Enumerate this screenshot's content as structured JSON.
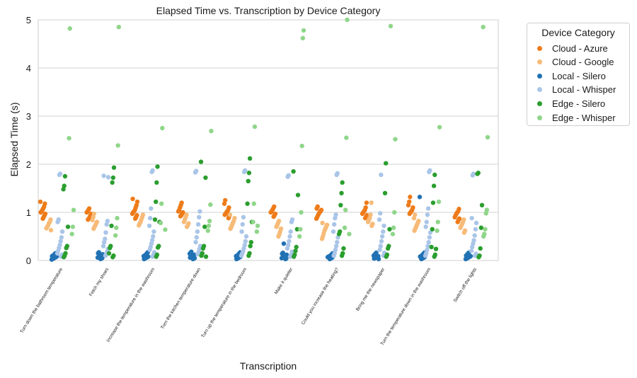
{
  "chart_data": {
    "type": "scatter",
    "title": "Elapsed Time vs. Transcription by Device Category",
    "xlabel": "Transcription",
    "ylabel": "Elapsed Time (s)",
    "ylim": [
      0,
      5
    ],
    "yticks": [
      0,
      1,
      2,
      3,
      4,
      5
    ],
    "grid": true,
    "legend_title": "Device Category",
    "legend_position": "outside-right",
    "categories": [
      "Turn down the bathroom temperature",
      "Fetch my shoes",
      "Increase the temperature in the washroom",
      "Turn the kitchen temperature down",
      "Turn up the temperature in the bedroom",
      "Make it quieter",
      "Could you increase the heating?",
      "Bring me the newspaper",
      "Turn the temperature down in the washroom",
      "Switch off the lights"
    ],
    "series": [
      {
        "name": "Cloud - Azure",
        "color": "#ee7b19",
        "values": [
          [
            1.22,
            1.18,
            1.12,
            1.08,
            1.05,
            1.02,
            1.0,
            0.97,
            0.94,
            0.9,
            0.87
          ],
          [
            1.08,
            1.05,
            1.02,
            1.0,
            0.97,
            0.94,
            0.9,
            0.87,
            0.85
          ],
          [
            1.28,
            1.22,
            1.15,
            1.1,
            1.05,
            1.02,
            1.0,
            0.97,
            0.94,
            0.9,
            0.87
          ],
          [
            1.2,
            1.15,
            1.1,
            1.05,
            1.02,
            1.0,
            0.97,
            0.94,
            0.92
          ],
          [
            1.25,
            1.18,
            1.1,
            1.05,
            1.02,
            1.0,
            0.97,
            0.95,
            0.92,
            0.88
          ],
          [
            1.12,
            1.08,
            1.05,
            1.02,
            1.0,
            0.97,
            0.94,
            0.91
          ],
          [
            1.12,
            1.08,
            1.05,
            1.02,
            1.0,
            0.97,
            0.94,
            0.9,
            0.87
          ],
          [
            1.2,
            1.1,
            1.05,
            1.02,
            1.0,
            0.97,
            0.94,
            0.91,
            0.88
          ],
          [
            1.32,
            1.22,
            1.15,
            1.1,
            1.05,
            1.02,
            1.0,
            0.97
          ],
          [
            1.07,
            1.02,
            1.0,
            0.97,
            0.94,
            0.9,
            0.87,
            0.84,
            0.8
          ]
        ]
      },
      {
        "name": "Cloud - Google",
        "color": "#f7bb78",
        "values": [
          [
            0.85,
            0.8,
            0.77,
            0.73,
            0.7,
            0.67,
            0.63
          ],
          [
            0.97,
            0.9,
            0.84,
            0.8,
            0.77,
            0.73,
            0.7,
            0.66
          ],
          [
            0.95,
            0.9,
            0.85,
            0.8,
            0.77,
            0.73
          ],
          [
            0.95,
            0.9,
            0.85,
            0.8,
            0.77,
            0.73,
            0.7
          ],
          [
            0.95,
            0.88,
            0.82,
            0.78,
            0.74,
            0.7,
            0.66
          ],
          [
            0.82,
            0.78,
            0.74,
            0.7,
            0.66,
            0.6,
            0.55,
            0.5
          ],
          [
            0.78,
            0.74,
            0.7,
            0.66,
            0.62,
            0.56,
            0.5,
            0.45
          ],
          [
            1.2,
            0.95,
            0.88,
            0.84,
            0.8,
            0.76,
            0.72
          ],
          [
            0.95,
            0.88,
            0.82,
            0.78,
            0.74,
            0.7,
            0.66,
            0.62
          ],
          [
            0.85,
            0.8,
            0.76,
            0.72,
            0.68,
            0.62,
            0.58
          ]
        ]
      },
      {
        "name": "Local - Silero",
        "color": "#2172b4",
        "values": [
          [
            0.15,
            0.13,
            0.11,
            0.1,
            0.09,
            0.08,
            0.07,
            0.06,
            0.05,
            0.04,
            0.03,
            0.02
          ],
          [
            0.17,
            0.15,
            0.13,
            0.11,
            0.1,
            0.09,
            0.08,
            0.07,
            0.06,
            0.05,
            0.04,
            0.03
          ],
          [
            0.17,
            0.15,
            0.13,
            0.11,
            0.1,
            0.09,
            0.08,
            0.07,
            0.06,
            0.05,
            0.04,
            0.03
          ],
          [
            0.18,
            0.16,
            0.14,
            0.12,
            0.1,
            0.09,
            0.08,
            0.07,
            0.06,
            0.05,
            0.04,
            0.03
          ],
          [
            0.17,
            0.15,
            0.13,
            0.11,
            0.1,
            0.09,
            0.08,
            0.07,
            0.06,
            0.05,
            0.04,
            0.03
          ],
          [
            0.35,
            0.16,
            0.14,
            0.12,
            0.1,
            0.09,
            0.08,
            0.07,
            0.06,
            0.05,
            0.04,
            0.03
          ],
          [
            0.15,
            0.13,
            0.11,
            0.1,
            0.09,
            0.08,
            0.07,
            0.06,
            0.05,
            0.04,
            0.03
          ],
          [
            0.16,
            0.14,
            0.12,
            0.1,
            0.09,
            0.08,
            0.07,
            0.06,
            0.05,
            0.04,
            0.03
          ],
          [
            1.32,
            0.16,
            0.14,
            0.12,
            0.1,
            0.09,
            0.08,
            0.07,
            0.06,
            0.05,
            0.04,
            0.03
          ],
          [
            0.16,
            0.14,
            0.12,
            0.1,
            0.09,
            0.08,
            0.07,
            0.06,
            0.05,
            0.04,
            0.03
          ]
        ]
      },
      {
        "name": "Local - Whisper",
        "color": "#a9c5e8",
        "values": [
          [
            1.8,
            1.78,
            0.85,
            0.8,
            0.6,
            0.48,
            0.4,
            0.32,
            0.26,
            0.2,
            0.15,
            0.12,
            0.08
          ],
          [
            1.76,
            1.73,
            0.82,
            0.75,
            0.58,
            0.45,
            0.38,
            0.3,
            0.24,
            0.18,
            0.13,
            0.1
          ],
          [
            1.87,
            1.84,
            1.08,
            0.88,
            0.72,
            0.6,
            0.5,
            0.42,
            0.35,
            0.28,
            0.22,
            0.17,
            0.12,
            0.08
          ],
          [
            1.86,
            1.83,
            1.02,
            0.9,
            0.75,
            0.6,
            0.48,
            0.38,
            0.3,
            0.24,
            0.18,
            0.13
          ],
          [
            1.87,
            1.84,
            0.9,
            0.75,
            0.6,
            0.5,
            0.4,
            0.32,
            0.25,
            0.19,
            0.14,
            0.1
          ],
          [
            1.77,
            1.74,
            0.85,
            0.8,
            0.6,
            0.5,
            0.4,
            0.32,
            0.25,
            0.18,
            0.12,
            0.08
          ],
          [
            1.81,
            1.78,
            0.95,
            0.88,
            0.75,
            0.6,
            0.48,
            0.38,
            0.3,
            0.22,
            0.15,
            0.1
          ],
          [
            1.78,
            0.98,
            0.85,
            0.72,
            0.6,
            0.5,
            0.4,
            0.3,
            0.22,
            0.16,
            0.1
          ],
          [
            1.87,
            1.84,
            1.08,
            0.95,
            0.8,
            0.7,
            0.58,
            0.48,
            0.38,
            0.3,
            0.22,
            0.15,
            0.1
          ],
          [
            1.8,
            1.77,
            0.88,
            0.78,
            0.65,
            0.52,
            0.42,
            0.35,
            0.28,
            0.2,
            0.14,
            0.1
          ]
        ]
      },
      {
        "name": "Edge - Silero",
        "color": "#2a9e2e",
        "values": [
          [
            1.75,
            1.55,
            1.48,
            0.7,
            0.3,
            0.26,
            0.15,
            0.1,
            0.07
          ],
          [
            1.93,
            1.72,
            1.62,
            0.72,
            0.3,
            0.26,
            0.15,
            0.1,
            0.07
          ],
          [
            1.95,
            1.62,
            1.22,
            0.85,
            0.8,
            0.3,
            0.27,
            0.12,
            0.08
          ],
          [
            2.05,
            1.72,
            0.7,
            0.3,
            0.25,
            0.15,
            0.1,
            0.08
          ],
          [
            2.12,
            1.82,
            1.65,
            1.18,
            0.8,
            0.38,
            0.3,
            0.15,
            0.1
          ],
          [
            1.85,
            1.36,
            0.65,
            0.28,
            0.2,
            0.12,
            0.08
          ],
          [
            1.62,
            1.4,
            1.15,
            0.6,
            0.55,
            0.25,
            0.15,
            0.1
          ],
          [
            2.02,
            1.4,
            0.65,
            0.3,
            0.25,
            0.12,
            0.08
          ],
          [
            1.78,
            1.55,
            1.2,
            0.65,
            0.28,
            0.24,
            0.12,
            0.08
          ],
          [
            1.82,
            1.8,
            1.15,
            0.68,
            0.25,
            0.1,
            0.07
          ]
        ]
      },
      {
        "name": "Edge - Whisper",
        "color": "#8fd68a",
        "values": [
          [
            4.82,
            2.54,
            1.05,
            0.7,
            0.55
          ],
          [
            4.85,
            2.39,
            0.88,
            0.68,
            0.52
          ],
          [
            2.75,
            1.18,
            0.78,
            0.64
          ],
          [
            2.69,
            1.16,
            0.82,
            0.72,
            0.62
          ],
          [
            2.78,
            1.18,
            0.8,
            0.72,
            0.6
          ],
          [
            4.78,
            4.62,
            2.38,
            1.0,
            0.65,
            0.5
          ],
          [
            5.0,
            2.55,
            1.05,
            0.68,
            0.55
          ],
          [
            4.87,
            2.52,
            1.0,
            0.68,
            0.55
          ],
          [
            2.77,
            1.22,
            0.8,
            0.62
          ],
          [
            4.85,
            2.56,
            1.05,
            0.98,
            0.65,
            0.55,
            0.5
          ]
        ]
      }
    ]
  }
}
